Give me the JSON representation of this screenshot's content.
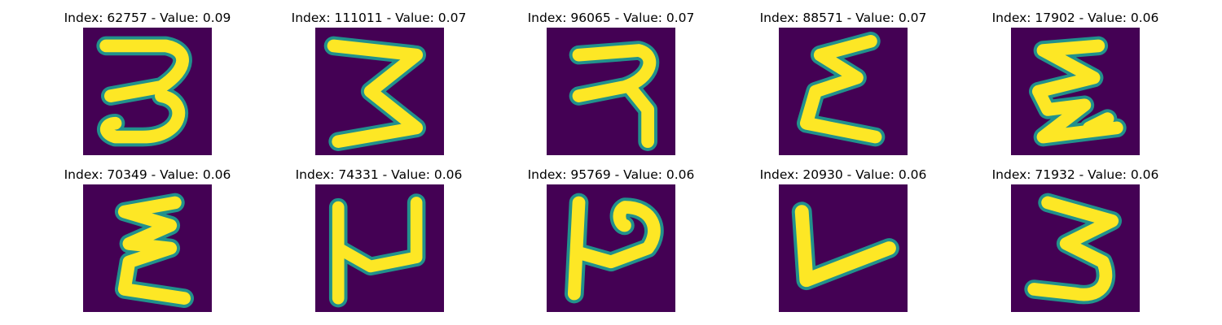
{
  "figure": {
    "colormap": {
      "background": "#440154",
      "edge": "#21918c",
      "mid": "#5ec962",
      "foreground": "#fde725"
    },
    "panels": [
      {
        "title": "Index: 62757 - Value: 0.09",
        "index": 62757,
        "value": 0.09,
        "glyph": "glyph-3-curly"
      },
      {
        "title": "Index: 111011 - Value: 0.07",
        "index": 111011,
        "value": 0.07,
        "glyph": "glyph-3-zigzag"
      },
      {
        "title": "Index: 96065 - Value: 0.07",
        "index": 96065,
        "value": 0.07,
        "glyph": "glyph-hooked"
      },
      {
        "title": "Index: 88571 - Value: 0.07",
        "index": 88571,
        "value": 0.07,
        "glyph": "glyph-epsilon"
      },
      {
        "title": "Index: 17902 - Value: 0.06",
        "index": 17902,
        "value": 0.06,
        "glyph": "glyph-epsilon-tail"
      },
      {
        "title": "Index: 70349 - Value: 0.06",
        "index": 70349,
        "value": 0.06,
        "glyph": "glyph-epsilon"
      },
      {
        "title": "Index: 74331 - Value: 0.06",
        "index": 74331,
        "value": 0.06,
        "glyph": "glyph-open-box"
      },
      {
        "title": "Index: 95769 - Value: 0.06",
        "index": 95769,
        "value": 0.06,
        "glyph": "glyph-p-shape"
      },
      {
        "title": "Index: 20930 - Value: 0.06",
        "index": 20930,
        "value": 0.06,
        "glyph": "glyph-v-shape"
      },
      {
        "title": "Index: 71932 - Value: 0.06",
        "index": 71932,
        "value": 0.06,
        "glyph": "glyph-3-zigzag"
      }
    ]
  }
}
